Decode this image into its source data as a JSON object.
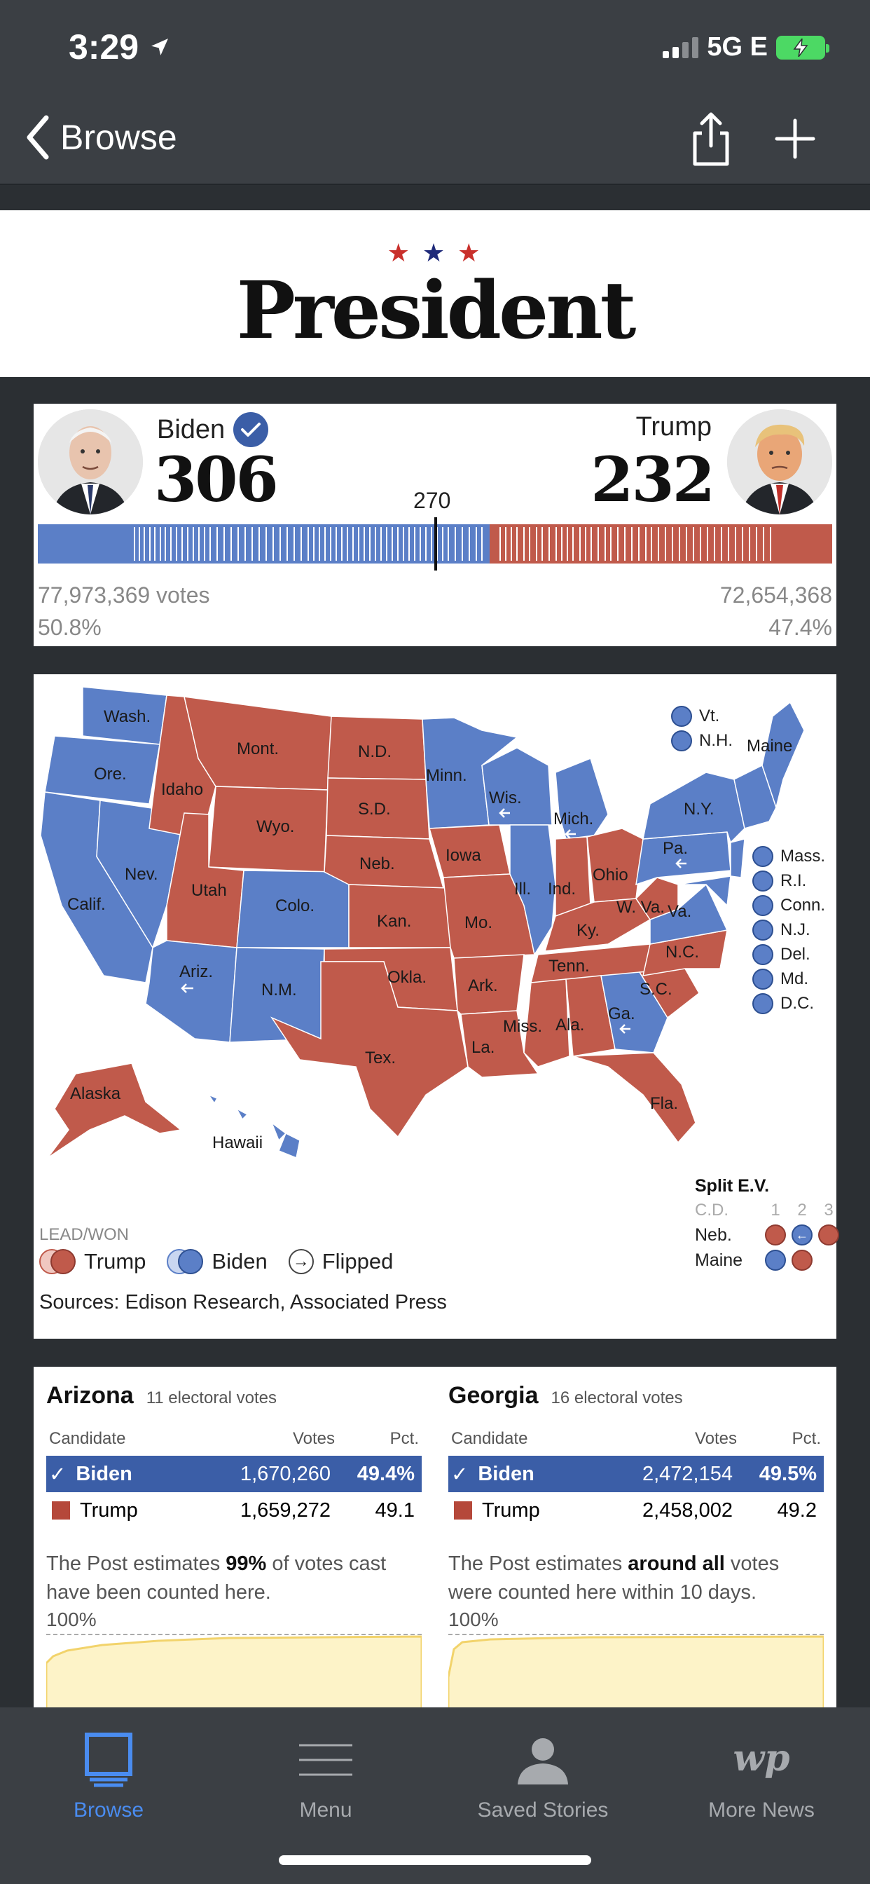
{
  "status": {
    "time": "3:29",
    "network": "5G E"
  },
  "nav": {
    "back_label": "Browse"
  },
  "title": {
    "stars": [
      "★",
      "★",
      "★"
    ],
    "text": "President"
  },
  "results": {
    "left": {
      "name": "Biden",
      "ev": "306",
      "votes": "77,973,369 votes",
      "pct": "50.8%"
    },
    "right": {
      "name": "Trump",
      "ev": "232",
      "votes": "72,654,368",
      "pct": "47.4%"
    },
    "threshold": "270",
    "left_ev_value": 306,
    "right_ev_value": 232,
    "total_ev": 538,
    "colors": {
      "dem": "#5b7fc7",
      "rep": "#c05a4b"
    }
  },
  "map": {
    "labels": {
      "wash": "Wash.",
      "ore": "Ore.",
      "calif": "Calif.",
      "idaho": "Idaho",
      "nev": "Nev.",
      "mont": "Mont.",
      "wyo": "Wyo.",
      "utah": "Utah",
      "colo": "Colo.",
      "ariz": "Ariz.",
      "nm": "N.M.",
      "nd": "N.D.",
      "sd": "S.D.",
      "neb": "Neb.",
      "kan": "Kan.",
      "okla": "Okla.",
      "tex": "Tex.",
      "minn": "Minn.",
      "iowa": "Iowa",
      "mo": "Mo.",
      "ark": "Ark.",
      "la": "La.",
      "wis": "Wis.",
      "ill": "Ill.",
      "mich": "Mich.",
      "ind": "Ind.",
      "ohio": "Ohio",
      "ky": "Ky.",
      "tenn": "Tenn.",
      "miss": "Miss.",
      "ala": "Ala.",
      "ga": "Ga.",
      "fla": "Fla.",
      "sc": "S.C.",
      "nc": "N.C.",
      "va": "Va.",
      "wva": "W. Va.",
      "pa": "Pa.",
      "ny": "N.Y.",
      "maine": "Maine",
      "alaska": "Alaska",
      "hawaii": "Hawaii"
    },
    "ne_states": [
      "Vt.",
      "N.H."
    ],
    "small_states": [
      "Mass.",
      "R.I.",
      "Conn.",
      "N.J.",
      "Del.",
      "Md.",
      "D.C."
    ],
    "legend": {
      "title": "LEAD/WON",
      "trump": "Trump",
      "biden": "Biden",
      "flipped": "Flipped"
    },
    "split": {
      "title": "Split E.V.",
      "cd": "C.D.",
      "cols": [
        "1",
        "2",
        "3"
      ],
      "neb": "Neb.",
      "maine": "Maine"
    },
    "sources": "Sources: Edison Research, Associated Press"
  },
  "states": [
    {
      "name": "Arizona",
      "ev": "11 electoral votes",
      "headers": {
        "candidate": "Candidate",
        "votes": "Votes",
        "pct": "Pct."
      },
      "rows": [
        {
          "name": "Biden",
          "votes": "1,670,260",
          "pct": "49.4%"
        },
        {
          "name": "Trump",
          "votes": "1,659,272",
          "pct": "49.1"
        }
      ],
      "estimate_pre": "The Post estimates ",
      "estimate_bold": "99%",
      "estimate_post": " of votes cast have been counted here.",
      "pct_label": "100%"
    },
    {
      "name": "Georgia",
      "ev": "16 electoral votes",
      "headers": {
        "candidate": "Candidate",
        "votes": "Votes",
        "pct": "Pct."
      },
      "rows": [
        {
          "name": "Biden",
          "votes": "2,472,154",
          "pct": "49.5%"
        },
        {
          "name": "Trump",
          "votes": "2,458,002",
          "pct": "49.2"
        }
      ],
      "estimate_pre": "The Post estimates ",
      "estimate_bold": "around all",
      "estimate_post": " votes were counted here within 10 days.",
      "pct_label": "100%"
    }
  ],
  "tabs": [
    {
      "label": "Browse",
      "icon": "browse-icon"
    },
    {
      "label": "Menu",
      "icon": "menu-icon"
    },
    {
      "label": "Saved Stories",
      "icon": "person-icon"
    },
    {
      "label": "More News",
      "icon": "wp-logo-icon"
    }
  ]
}
